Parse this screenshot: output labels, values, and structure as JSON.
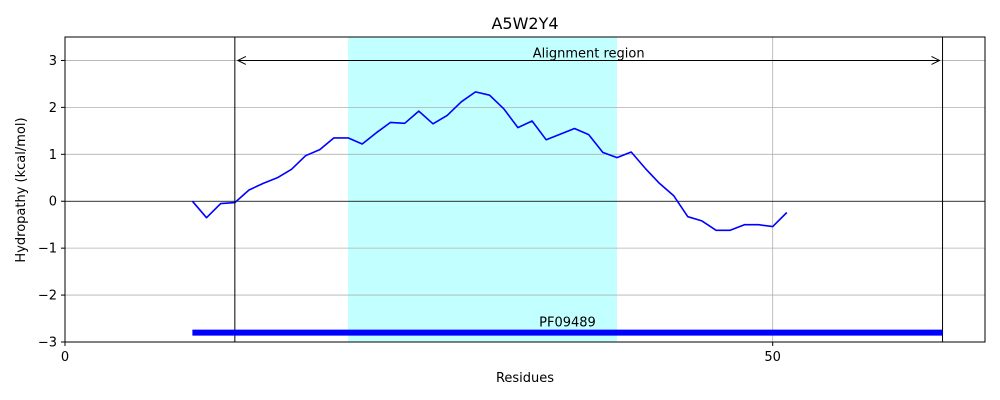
{
  "chart_data": {
    "type": "line",
    "title": "A5W2Y4",
    "xlabel": "Residues",
    "ylabel": "Hydropathy (kcal/mol)",
    "xlim": [
      0,
      65
    ],
    "ylim": [
      -3,
      3.5
    ],
    "xticks": [
      0,
      50
    ],
    "xtick_labels": [
      "0",
      "50"
    ],
    "yticks": [
      -3,
      -2,
      -1,
      0,
      1,
      2,
      3
    ],
    "ytick_labels": [
      "−3",
      "−2",
      "−1",
      "0",
      "1",
      "2",
      "3"
    ],
    "grid": true,
    "series": [
      {
        "x": [
          9,
          10,
          11,
          12,
          13,
          14,
          15,
          16,
          17,
          18,
          19,
          20,
          21,
          22,
          23,
          24,
          25,
          26,
          27,
          28,
          29,
          30,
          31,
          32,
          33,
          34,
          35,
          36,
          37,
          38,
          39,
          40,
          41,
          42,
          43,
          44,
          45,
          46,
          47,
          48,
          49,
          50,
          51
        ],
        "y": [
          0.0,
          -0.35,
          -0.05,
          -0.03,
          0.24,
          0.38,
          0.5,
          0.68,
          0.97,
          1.1,
          1.35,
          1.35,
          1.22,
          1.46,
          1.68,
          1.66,
          1.92,
          1.65,
          1.83,
          2.12,
          2.33,
          2.26,
          1.97,
          1.57,
          1.71,
          1.31,
          1.43,
          1.55,
          1.42,
          1.04,
          0.93,
          1.05,
          0.7,
          0.38,
          0.12,
          -0.33,
          -0.42,
          -0.62,
          -0.62,
          -0.5,
          -0.5,
          -0.54,
          -0.24
        ],
        "color": "#0000ff"
      }
    ],
    "highlight_region": {
      "x0": 20,
      "x1": 39,
      "color": "#c2ffff"
    },
    "alignment": {
      "label": "Alignment region",
      "x0": 12,
      "x1": 62,
      "arrow_y": 3.0
    },
    "domain_bar": {
      "label": "PF09489",
      "x0": 9,
      "x1": 62,
      "y": -2.8,
      "color": "#0000ff"
    }
  }
}
